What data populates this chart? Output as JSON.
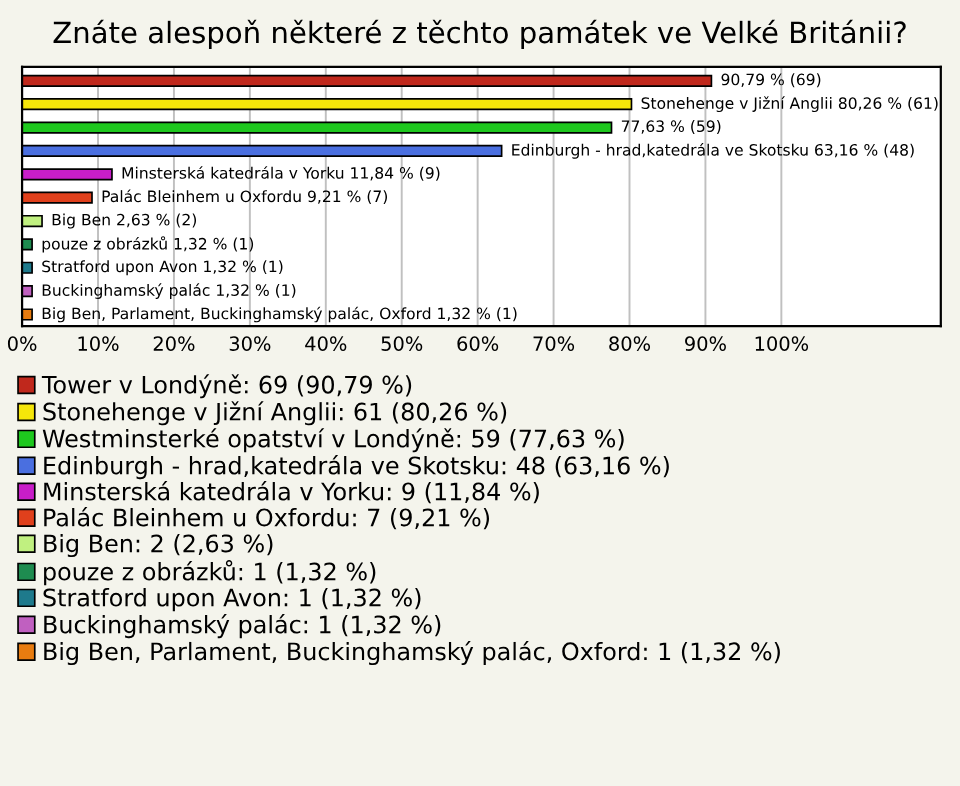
{
  "chart_data": {
    "type": "bar",
    "orientation": "horizontal",
    "title": "Znáte alespoň některé z těchto památek ve Velké Británii?",
    "categories": [
      null,
      null,
      null,
      null,
      null,
      null,
      null,
      null,
      null,
      null,
      null
    ],
    "series": [
      {
        "name": "Tower v Londýně: 69 (90,79 %)",
        "color": "#c0281c",
        "values": [
          90.79,
          null,
          null,
          null,
          null,
          null,
          null,
          null,
          null,
          null,
          null
        ],
        "value_labels": [
          "90,79 % (69)",
          null,
          null,
          null,
          null,
          null,
          null,
          null,
          null,
          null,
          null
        ]
      },
      {
        "name": "Stonehenge v Jižní Anglii: 61 (80,26 %)",
        "color": "#f5e60a",
        "values": [
          null,
          80.26,
          null,
          null,
          null,
          null,
          null,
          null,
          null,
          null,
          null
        ],
        "value_labels": [
          null,
          "Stonehenge v Jižní Anglii 80,26 % (61)",
          null,
          null,
          null,
          null,
          null,
          null,
          null,
          null,
          null
        ]
      },
      {
        "name": "Westminsterké opatství v Londýně: 59 (77,63 %)",
        "color": "#1ec81e",
        "values": [
          null,
          null,
          77.63,
          null,
          null,
          null,
          null,
          null,
          null,
          null,
          null
        ],
        "value_labels": [
          null,
          null,
          "77,63 % (59)",
          null,
          null,
          null,
          null,
          null,
          null,
          null,
          null
        ]
      },
      {
        "name": "Edinburgh - hrad,katedrála ve Skotsku: 48 (63,16 %)",
        "color": "#4a6fe0",
        "values": [
          null,
          null,
          null,
          63.16,
          null,
          null,
          null,
          null,
          null,
          null,
          null
        ],
        "value_labels": [
          null,
          null,
          null,
          "Edinburgh - hrad,katedrála ve Skotsku 63,16 % (48)",
          null,
          null,
          null,
          null,
          null,
          null,
          null
        ]
      },
      {
        "name": "Minsterská katedrála v Yorku: 9 (11,84 %)",
        "color": "#c81ec8",
        "values": [
          null,
          null,
          null,
          null,
          11.84,
          null,
          null,
          null,
          null,
          null,
          null
        ],
        "value_labels": [
          null,
          null,
          null,
          null,
          "Minsterská katedrála v Yorku 11,84 % (9)",
          null,
          null,
          null,
          null,
          null,
          null
        ]
      },
      {
        "name": "Palác Bleinhem u Oxfordu: 7 (9,21 %)",
        "color": "#e0401c",
        "values": [
          null,
          null,
          null,
          null,
          null,
          9.21,
          null,
          null,
          null,
          null,
          null
        ],
        "value_labels": [
          null,
          null,
          null,
          null,
          null,
          "Palác Bleinhem u Oxfordu 9,21 % (7)",
          null,
          null,
          null,
          null,
          null
        ]
      },
      {
        "name": "Big Ben: 2 (2,63 %)",
        "color": "#c0f080",
        "values": [
          null,
          null,
          null,
          null,
          null,
          null,
          2.63,
          null,
          null,
          null,
          null
        ],
        "value_labels": [
          null,
          null,
          null,
          null,
          null,
          null,
          "Big Ben 2,63 % (2)",
          null,
          null,
          null,
          null
        ]
      },
      {
        "name": "pouze z obrázků: 1 (1,32 %)",
        "color": "#1e8c50",
        "values": [
          null,
          null,
          null,
          null,
          null,
          null,
          null,
          1.32,
          null,
          null,
          null
        ],
        "value_labels": [
          null,
          null,
          null,
          null,
          null,
          null,
          null,
          "pouze z obrázků 1,32 % (1)",
          null,
          null,
          null
        ]
      },
      {
        "name": "Stratford upon Avon: 1 (1,32 %)",
        "color": "#1e7a8c",
        "values": [
          null,
          null,
          null,
          null,
          null,
          null,
          null,
          null,
          1.32,
          null,
          null
        ],
        "value_labels": [
          null,
          null,
          null,
          null,
          null,
          null,
          null,
          null,
          "Stratford upon Avon 1,32 % (1)",
          null,
          null
        ]
      },
      {
        "name": "Buckinghamský palác: 1 (1,32 %)",
        "color": "#c060c0",
        "values": [
          null,
          null,
          null,
          null,
          null,
          null,
          null,
          null,
          null,
          1.32,
          null
        ],
        "value_labels": [
          null,
          null,
          null,
          null,
          null,
          null,
          null,
          null,
          null,
          "Buckinghamský palác 1,32 % (1)",
          null
        ]
      },
      {
        "name": "Big Ben, Parlament, Buckinghamský palác, Oxford: 1 (1,32 %)",
        "color": "#e87c10",
        "values": [
          null,
          null,
          null,
          null,
          null,
          null,
          null,
          null,
          null,
          null,
          1.32
        ],
        "value_labels": [
          null,
          null,
          null,
          null,
          null,
          null,
          null,
          null,
          null,
          null,
          "Big Ben, Parlament, Buckinghamský palác, Oxford 1,32 % (1)"
        ]
      }
    ],
    "xlim": [
      0,
      121
    ],
    "xticks": [
      {
        "value": 0,
        "label": "0%"
      },
      {
        "value": 10,
        "label": "10%"
      },
      {
        "value": 20,
        "label": "20%"
      },
      {
        "value": 30,
        "label": "30%"
      },
      {
        "value": 40,
        "label": "40%"
      },
      {
        "value": 50,
        "label": "50%"
      },
      {
        "value": 60,
        "label": "60%"
      },
      {
        "value": 70,
        "label": "70%"
      },
      {
        "value": 80,
        "label": "80%"
      },
      {
        "value": 90,
        "label": "90%"
      },
      {
        "value": 100,
        "label": "100%"
      }
    ],
    "grid": "x",
    "legend": "bottom",
    "tick_labels": "x"
  }
}
